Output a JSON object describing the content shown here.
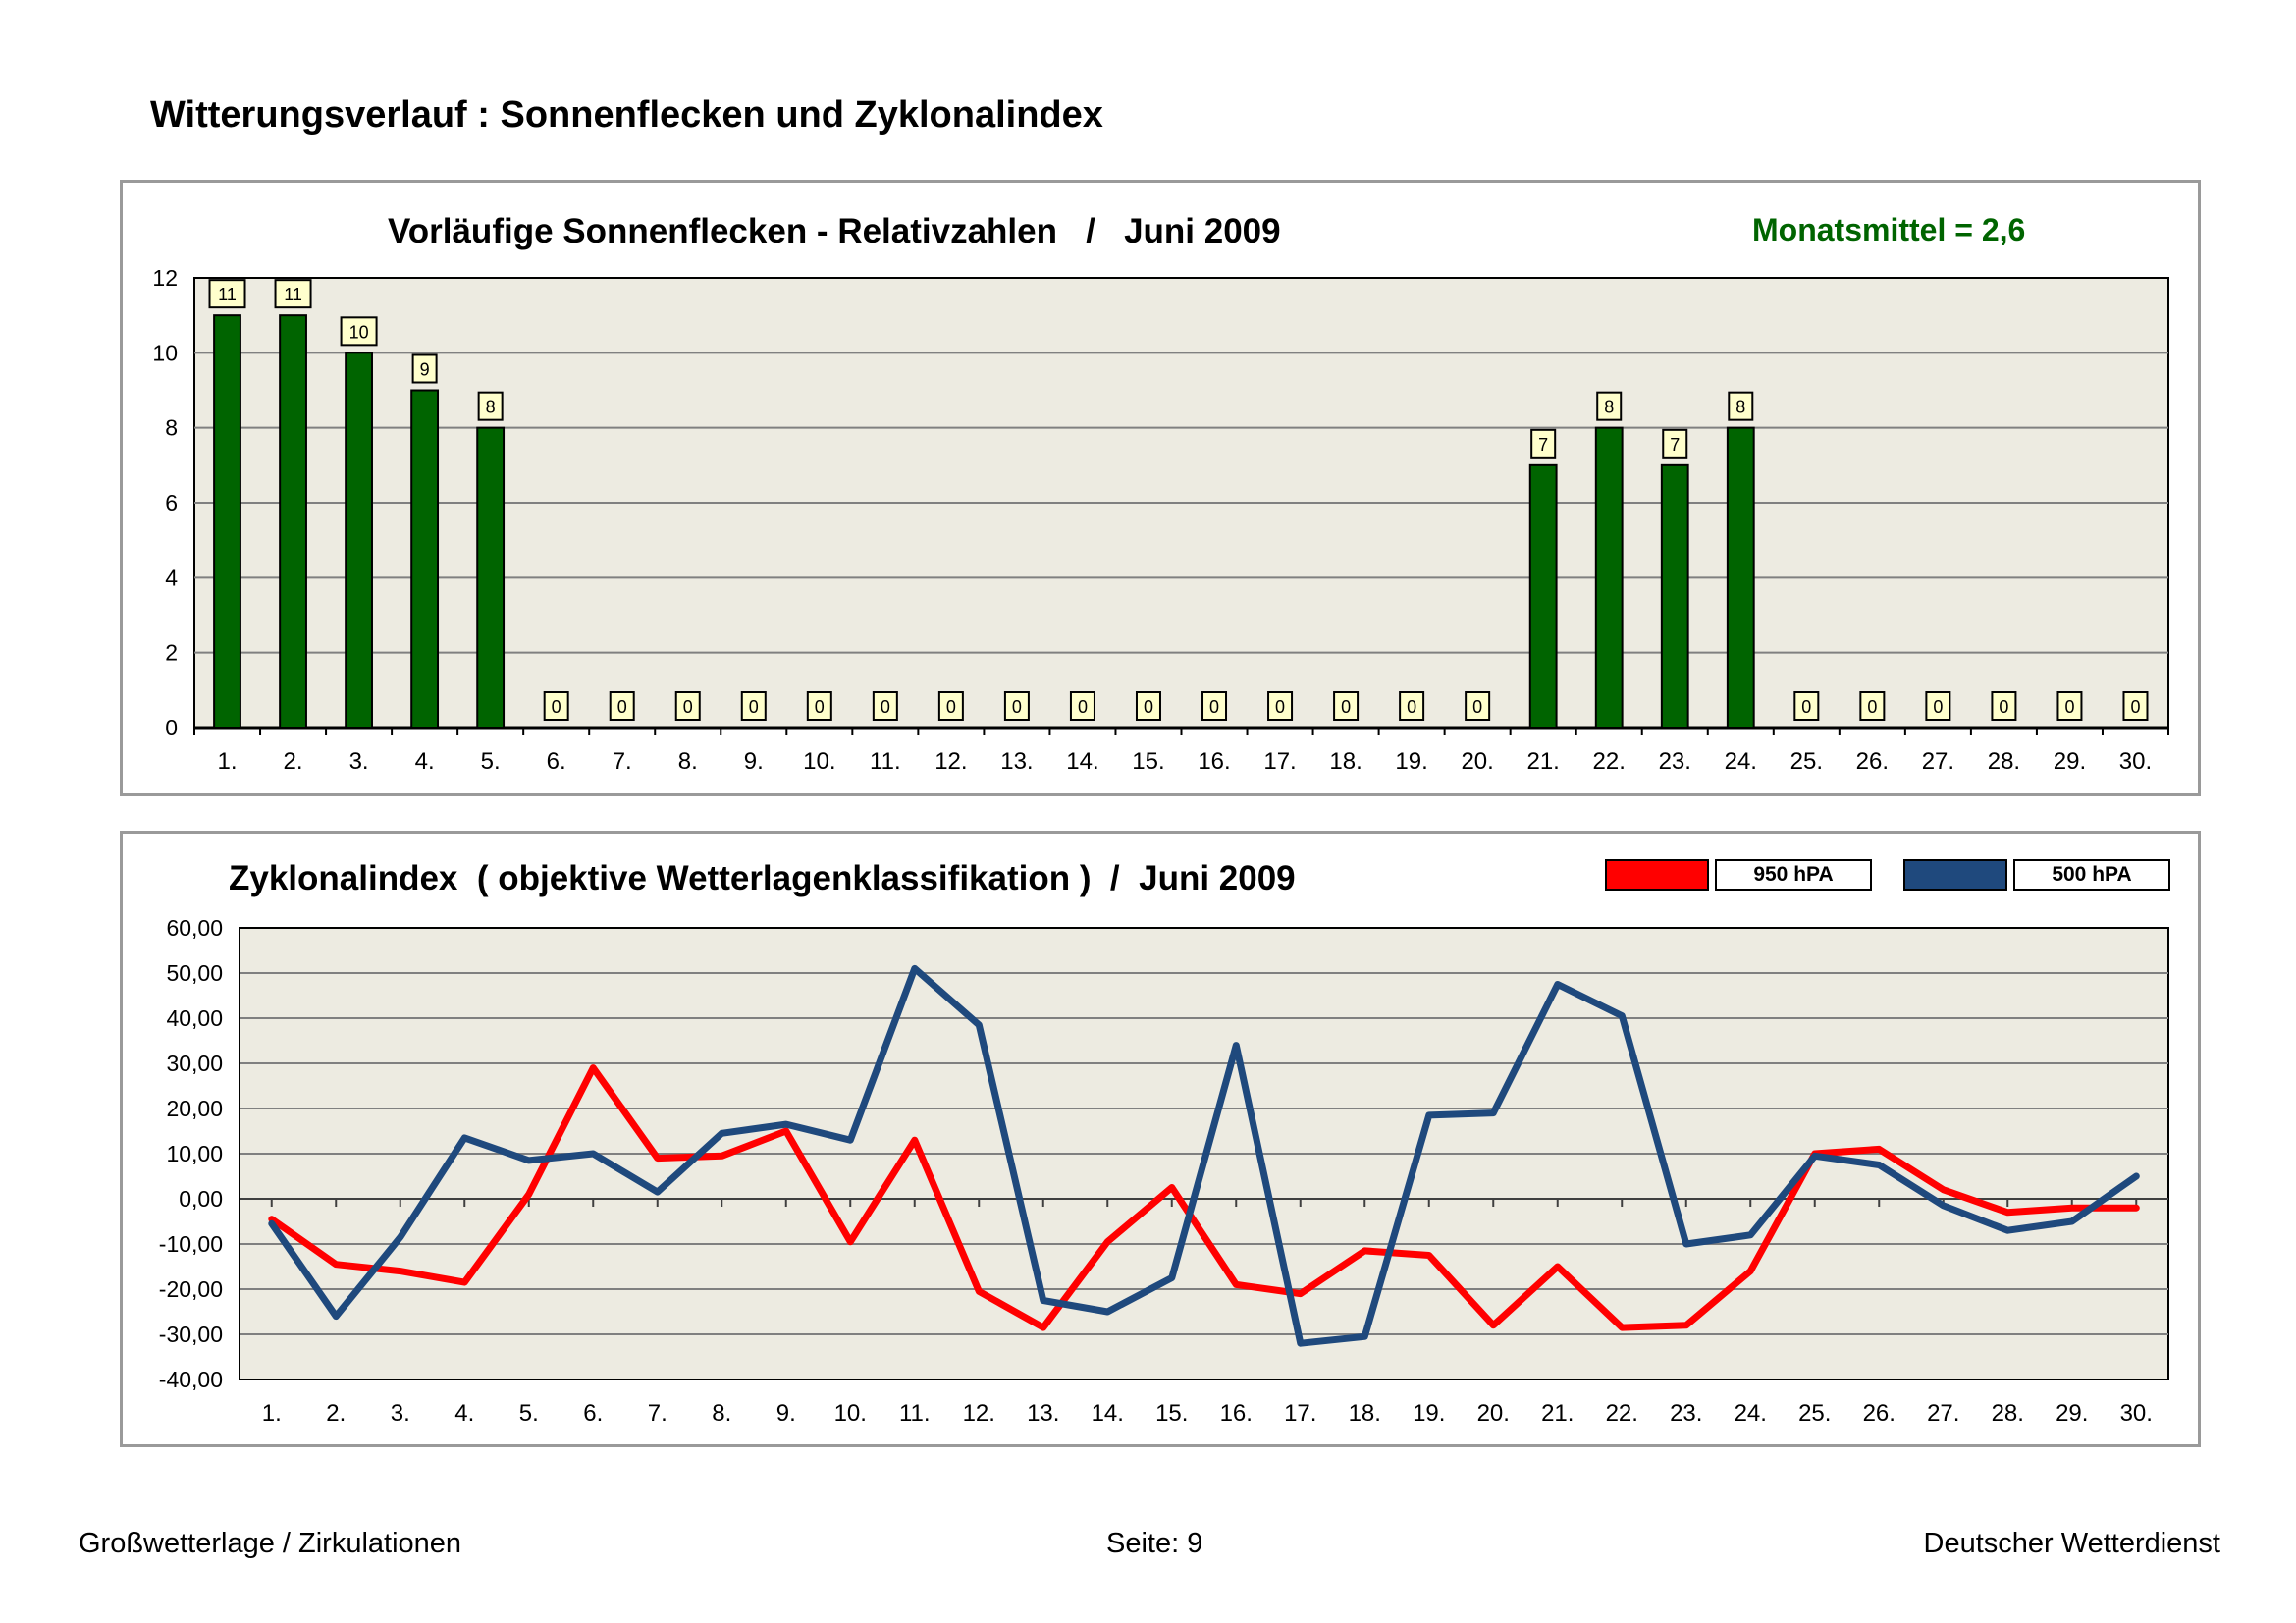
{
  "page": {
    "title": "Witterungsverlauf : Sonnenflecken und Zyklonalindex",
    "footer_left": "Großwetterlage / Zirkulationen",
    "footer_center": "Seite: 9",
    "footer_right": "Deutscher Wetterdienst"
  },
  "colors": {
    "plot_bg": "#edebe1",
    "bar": "#006400",
    "grid": "#808080",
    "label_box": "#ffffcc",
    "line_950": "#ff0000",
    "line_500": "#1f497d"
  },
  "chart_data": [
    {
      "type": "bar",
      "title": "Vorläufige Sonnenflecken - Relativzahlen   /   Juni 2009",
      "annotation": "Monatsmittel = 2,6",
      "categories": [
        "1.",
        "2.",
        "3.",
        "4.",
        "5.",
        "6.",
        "7.",
        "8.",
        "9.",
        "10.",
        "11.",
        "12.",
        "13.",
        "14.",
        "15.",
        "16.",
        "17.",
        "18.",
        "19.",
        "20.",
        "21.",
        "22.",
        "23.",
        "24.",
        "25.",
        "26.",
        "27.",
        "28.",
        "29.",
        "30."
      ],
      "values": [
        11,
        11,
        10,
        9,
        8,
        0,
        0,
        0,
        0,
        0,
        0,
        0,
        0,
        0,
        0,
        0,
        0,
        0,
        0,
        0,
        7,
        8,
        7,
        8,
        0,
        0,
        0,
        0,
        0,
        0
      ],
      "ylim": [
        0,
        12
      ],
      "yticks": [
        "0",
        "2",
        "4",
        "6",
        "8",
        "10",
        "12"
      ],
      "xlabel": "",
      "ylabel": "",
      "grid": true
    },
    {
      "type": "line",
      "title": "Zyklonalindex  ( objektive Wetterlagenklassifikation )  /  Juni 2009",
      "categories": [
        "1.",
        "2.",
        "3.",
        "4.",
        "5.",
        "6.",
        "7.",
        "8.",
        "9.",
        "10.",
        "11.",
        "12.",
        "13.",
        "14.",
        "15.",
        "16.",
        "17.",
        "18.",
        "19.",
        "20.",
        "21.",
        "22.",
        "23.",
        "24.",
        "25.",
        "26.",
        "27.",
        "28.",
        "29.",
        "30."
      ],
      "series": [
        {
          "name": "950 hPA",
          "values": [
            -4.5,
            -14.5,
            -16,
            -18.5,
            1,
            29,
            9,
            9.5,
            15,
            -9.5,
            13,
            -20.5,
            -28.5,
            -9.5,
            2.5,
            -19,
            -21,
            -11.5,
            -12.5,
            -28,
            -15,
            -28.5,
            -28,
            -16,
            10,
            11,
            2,
            -3,
            -2,
            -2
          ]
        },
        {
          "name": "500 hPA",
          "values": [
            -5.5,
            -26,
            -8.5,
            13.5,
            8.5,
            10,
            1.5,
            14.5,
            16.5,
            13,
            51,
            38.5,
            -22.5,
            -25,
            -17.5,
            34,
            -32,
            -30.5,
            18.5,
            19,
            47.5,
            40.5,
            -10,
            -8,
            9.5,
            7.5,
            -1.5,
            -7,
            -5,
            5
          ]
        }
      ],
      "ylim": [
        -40,
        60
      ],
      "yticks": [
        "-40,00",
        "-30,00",
        "-20,00",
        "-10,00",
        "0,00",
        "10,00",
        "20,00",
        "30,00",
        "40,00",
        "50,00",
        "60,00"
      ],
      "xlabel": "",
      "ylabel": "",
      "legend": "top-right",
      "grid": true
    }
  ]
}
